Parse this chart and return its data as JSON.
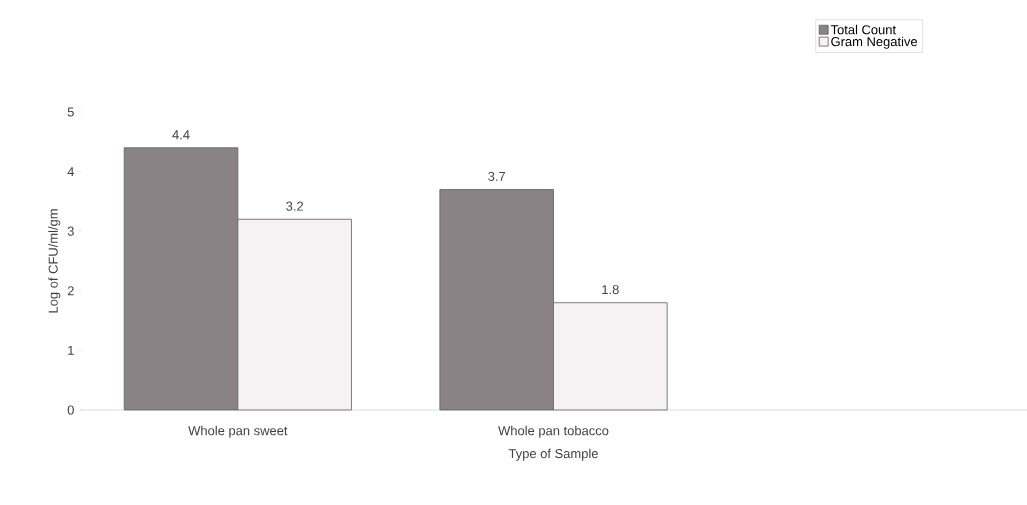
{
  "chart_data": {
    "type": "bar",
    "xlabel": "Type of Sample",
    "ylabel": "Log of CFU/ml/gm",
    "categories": [
      "Whole pan sweet",
      "Whole pan tobacco",
      null
    ],
    "series": [
      {
        "name": "Total Count",
        "color": "#8a8386",
        "values": [
          4.4,
          3.7,
          null
        ]
      },
      {
        "name": "Gram Negative",
        "color": "#f6f1f3",
        "values": [
          3.2,
          1.8,
          null
        ]
      }
    ],
    "ylim": [
      0,
      5
    ],
    "yticks": [
      0,
      1,
      2,
      3,
      4,
      5
    ],
    "grid": false,
    "legend": "top right",
    "data_labels": true
  }
}
